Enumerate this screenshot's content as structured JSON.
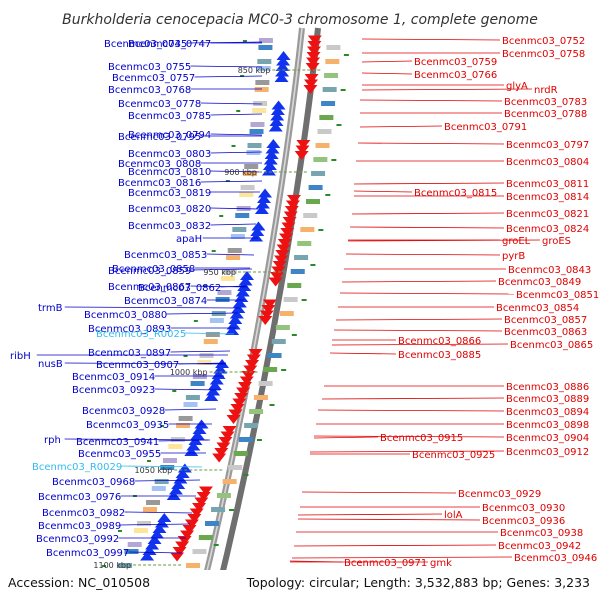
{
  "title": "Burkholderia cenocepacia MC0-3 chromosome 1, complete genome",
  "accession": "Accession: NC_010508",
  "summary": "Topology: circular; Length: 3,532,883 bp; Genes: 3,233",
  "colors": {
    "left_label": "#0000cc",
    "right_label": "#e00000",
    "rna_label": "#33bbee",
    "backbone": "#8a8a8a",
    "forward": "#1133ee",
    "reverse": "#ee1111"
  },
  "kbp_marks": [
    "850 kbp",
    "900 kbp",
    "950 kbp",
    "1000 kbp",
    "1050 kbp",
    "1100 kbp"
  ],
  "left_labels": [
    "Bcenmc03_0745",
    "Bcenmc03_0747",
    "Bcenmc03_0755",
    "Bcenmc03_0757",
    "Bcenmc03_0768",
    "Bcenmc03_0778",
    "Bcenmc03_0785",
    "Bcenmc03_0795",
    "Bcenmc03_0794",
    "Bcenmc03_0803",
    "Bcenmc03_0808",
    "Bcenmc03_0810",
    "Bcenmc03_0816",
    "Bcenmc03_0819",
    "Bcenmc03_0820",
    "Bcenmc03_0832",
    "apaH",
    "Bcenmc03_0853",
    "Bcenmc03_0859",
    "Bcenmc03_0858",
    "Bcenmc03_0867",
    "Bcenmc03_0862",
    "Bcenmc03_0874",
    "trmB",
    "Bcenmc03_0880",
    "Bcenmc03_0893",
    "Bcenmc03_R0025",
    "Bcenmc03_0897",
    "ribH",
    "nusB",
    "Bcenmc03_0907",
    "Bcenmc03_0914",
    "Bcenmc03_0923",
    "Bcenmc03_0928",
    "Bcenmc03_0935",
    "rph",
    "Bcenmc03_0941",
    "Bcenmc03_0955",
    "Bcenmc03_R0029",
    "Bcenmc03_0968",
    "Bcenmc03_0976",
    "Bcenmc03_0982",
    "Bcenmc03_0989",
    "Bcenmc03_0992",
    "Bcenmc03_0997"
  ],
  "right_labels": [
    "Bcenmc03_0752",
    "Bcenmc03_0758",
    "Bcenmc03_0759",
    "Bcenmc03_0766",
    "glyA",
    "nrdR",
    "Bcenmc03_0783",
    "Bcenmc03_0788",
    "Bcenmc03_0791",
    "Bcenmc03_0797",
    "Bcenmc03_0804",
    "Bcenmc03_0811",
    "Bcenmc03_0815",
    "Bcenmc03_0814",
    "Bcenmc03_0821",
    "Bcenmc03_0824",
    "groEL",
    "groES",
    "pyrB",
    "Bcenmc03_0843",
    "Bcenmc03_0849",
    "Bcenmc03_0851",
    "Bcenmc03_0854",
    "Bcenmc03_0857",
    "Bcenmc03_0863",
    "Bcenmc03_0866",
    "Bcenmc03_0865",
    "Bcenmc03_0885",
    "Bcenmc03_0886",
    "Bcenmc03_0889",
    "Bcenmc03_0894",
    "Bcenmc03_0898",
    "Bcenmc03_0915",
    "Bcenmc03_0904",
    "Bcenmc03_0925",
    "Bcenmc03_0912",
    "Bcenmc03_0929",
    "Bcenmc03_0930",
    "lolA",
    "Bcenmc03_0936",
    "Bcenmc03_0938",
    "Bcenmc03_0942",
    "Bcenmc03_0971",
    "gmk",
    "Bcenmc03_0946"
  ]
}
